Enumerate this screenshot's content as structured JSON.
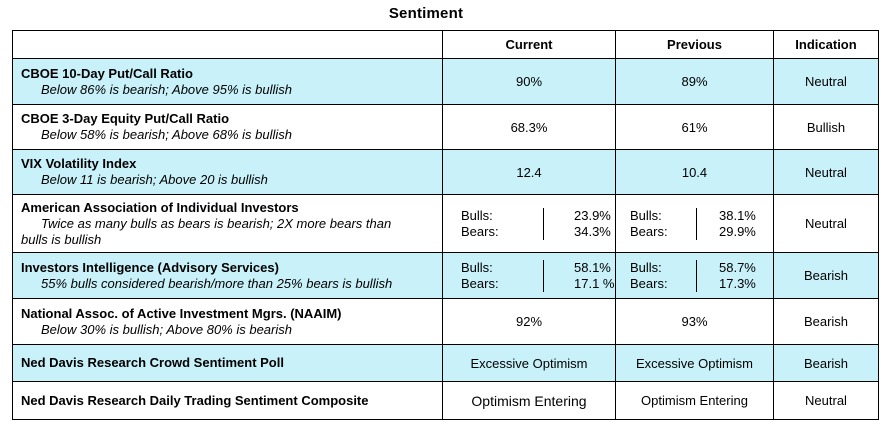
{
  "title": "Sentiment",
  "headers": {
    "current": "Current",
    "previous": "Previous",
    "indication": "Indication"
  },
  "rows": [
    {
      "name": "CBOE 10-Day Put/Call Ratio",
      "sub": "Below 86% is bearish; Above 95% is bullish",
      "current": "90%",
      "previous": "89%",
      "indication": "Neutral"
    },
    {
      "name": "CBOE 3-Day Equity Put/Call Ratio",
      "sub": "Below 58% is bearish; Above 68% is bullish",
      "current": "68.3%",
      "previous": "61%",
      "indication": "Bullish"
    },
    {
      "name": "VIX Volatility Index",
      "sub": "Below 11 is bearish; Above 20 is bullish",
      "current": "12.4",
      "previous": "10.4",
      "indication": "Neutral"
    },
    {
      "name": "American Association of Individual Investors",
      "sub": "Twice as many bulls as bears is bearish; 2X more bears than",
      "sub2": "bulls is bullish",
      "current": {
        "bulls_label": "Bulls:",
        "bears_label": "Bears:",
        "bulls": "23.9%",
        "bears": "34.3%"
      },
      "previous": {
        "bulls_label": "Bulls:",
        "bears_label": "Bears:",
        "bulls": "38.1%",
        "bears": "29.9%"
      },
      "indication": "Neutral"
    },
    {
      "name": "Investors Intelligence (Advisory Services)",
      "sub": "55% bulls considered bearish/more than 25% bears is bullish",
      "current": {
        "bulls_label": "Bulls:",
        "bears_label": "Bears:",
        "bulls": "58.1%",
        "bears": "17.1 %"
      },
      "previous": {
        "bulls_label": "Bulls:",
        "bears_label": "Bears:",
        "bulls": "58.7%",
        "bears": "17.3%"
      },
      "indication": "Bearish"
    },
    {
      "name": "National Assoc. of Active Investment Mgrs. (NAAIM)",
      "sub": "Below 30% is bullish; Above 80% is bearish",
      "current": "92%",
      "previous": "93%",
      "indication": "Bearish"
    },
    {
      "name": "Ned Davis Research Crowd Sentiment Poll",
      "current": "Excessive Optimism",
      "previous": "Excessive Optimism",
      "indication": "Bearish"
    },
    {
      "name": "Ned Davis Research Daily Trading Sentiment Composite",
      "current": "Optimism Entering",
      "previous": "Optimism Entering",
      "indication": "Neutral"
    }
  ],
  "colors": {
    "highlight": "#c8f1f9",
    "border": "#000000"
  }
}
